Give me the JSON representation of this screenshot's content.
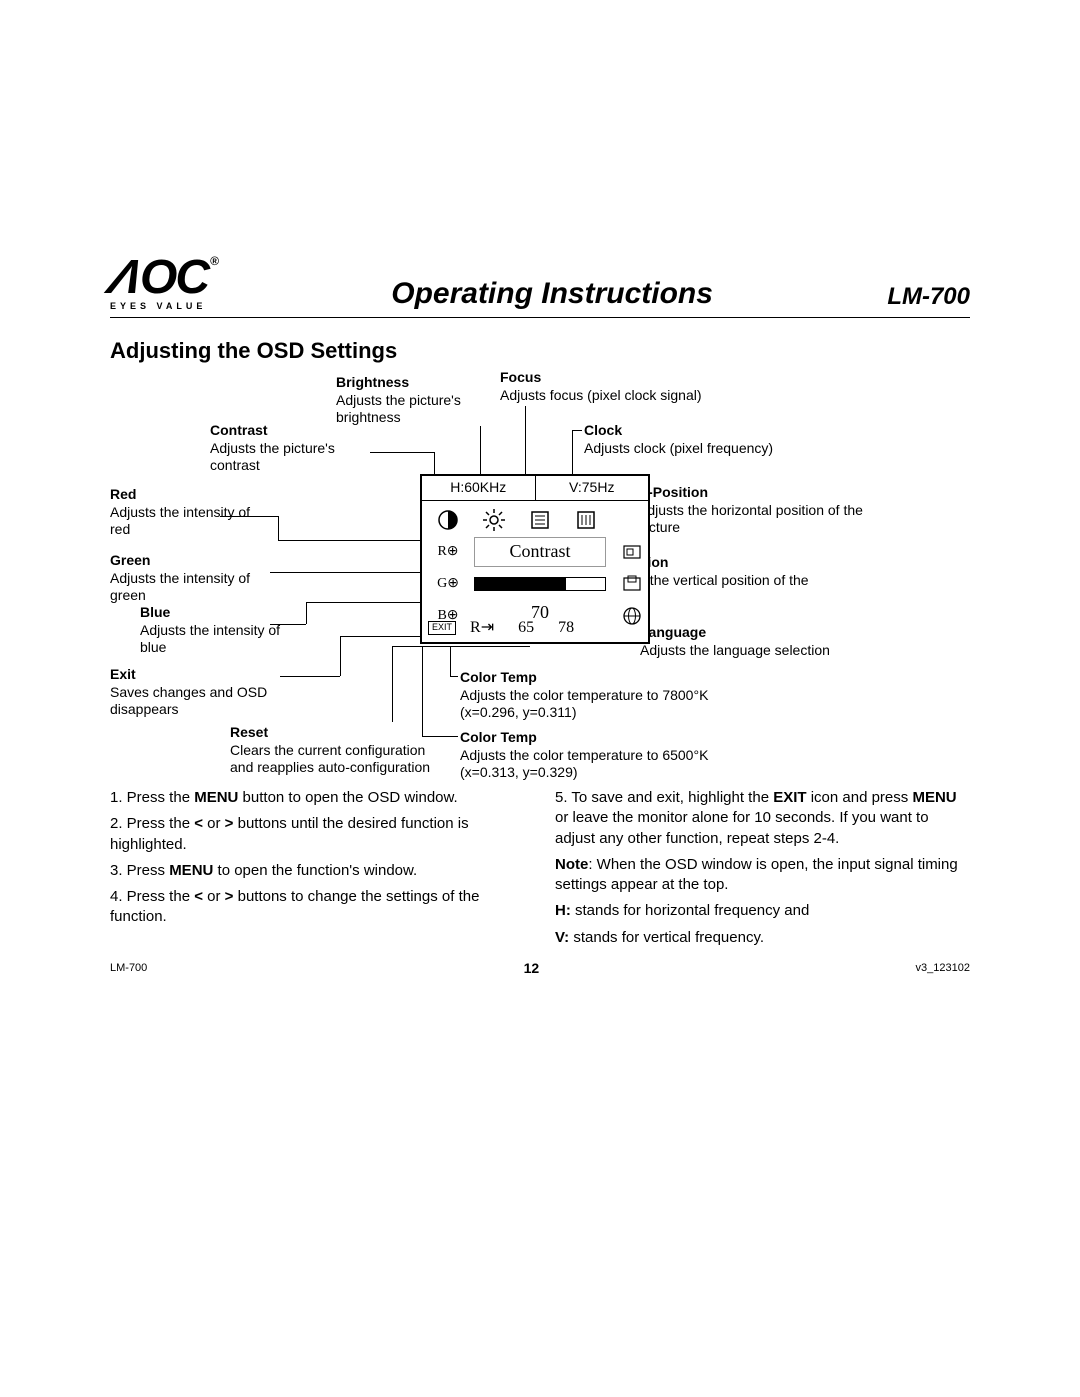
{
  "logo": {
    "brand": "AOC",
    "tagline": "EYES VALUE",
    "reg": "®"
  },
  "header": {
    "title": "Operating Instructions",
    "model": "LM-700"
  },
  "section_title": "Adjusting the OSD Settings",
  "osd": {
    "h_freq": "H:60KHz",
    "v_freq": "V:75Hz",
    "r": "R⊕",
    "g": "G⊕",
    "b": "B⊕",
    "selected_label": "Contrast",
    "value": "70",
    "slider_pct": 70,
    "exit": "EXIT",
    "reset": "R⇥",
    "ct1": "65",
    "ct2": "78"
  },
  "callouts": {
    "contrast": {
      "lbl": "Contrast",
      "desc": "Adjusts the picture's contrast"
    },
    "brightness": {
      "lbl": "Brightness",
      "desc": "Adjusts the picture's brightness"
    },
    "focus": {
      "lbl": "Focus",
      "desc": "Adjusts focus (pixel clock signal)"
    },
    "clock": {
      "lbl": "Clock",
      "desc": "Adjusts clock (pixel frequency)"
    },
    "red": {
      "lbl": "Red",
      "desc": "Adjusts the intensity of red"
    },
    "green": {
      "lbl": "Green",
      "desc": "Adjusts the intensity of green"
    },
    "blue": {
      "lbl": "Blue",
      "desc": "Adjusts the intensity of blue"
    },
    "exit": {
      "lbl": "Exit",
      "desc": "Saves changes and OSD disappears"
    },
    "reset": {
      "lbl": "Reset",
      "desc": "Clears the current configuration and reapplies auto-configuration"
    },
    "hpos": {
      "lbl": "H-Position",
      "desc": "Adjusts the horizontal position of the picture"
    },
    "vpos": {
      "lbl": "V-Position",
      "desc": "Adjusts the vertical position of the picture"
    },
    "lang": {
      "lbl": "Language",
      "desc": "Adjusts the language selection"
    },
    "ct78": {
      "lbl": "Color Temp",
      "desc": "Adjusts the color temperature to 7800°K (x=0.296, y=0.311)"
    },
    "ct65": {
      "lbl": "Color Temp",
      "desc": "Adjusts the color temperature to 6500°K (x=0.313, y=0.329)"
    }
  },
  "steps": {
    "s1a": "1. Press the ",
    "s1b": "MENU",
    "s1c": " button to open the OSD window.",
    "s2a": "2. Press the ",
    "s2b": "<",
    "s2c": " or ",
    "s2d": ">",
    "s2e": " buttons until the desired function is highlighted.",
    "s3a": "3. Press ",
    "s3b": "MENU",
    "s3c": " to open the function's window.",
    "s4a": "4. Press the ",
    "s4b": "<",
    "s4c": " or ",
    "s4d": ">",
    "s4e": " buttons to change the settings of the function.",
    "s5a": "5. To save and exit, highlight the ",
    "s5b": "EXIT",
    "s5c": " icon and press ",
    "s5d": "MENU",
    "s5e": " or leave the monitor alone for 10 seconds. If you want to adjust any other function, repeat steps 2-4.",
    "note_lbl": "Note",
    "note_txt": ": When the OSD window is open, the input signal timing settings appear at the top.",
    "h_lbl": "H:",
    "h_txt": " stands for horizontal frequency and",
    "v_lbl": "V:",
    "v_txt": " stands for vertical frequency."
  },
  "footer": {
    "left": "LM-700",
    "page": "12",
    "right": "v3_123102"
  }
}
